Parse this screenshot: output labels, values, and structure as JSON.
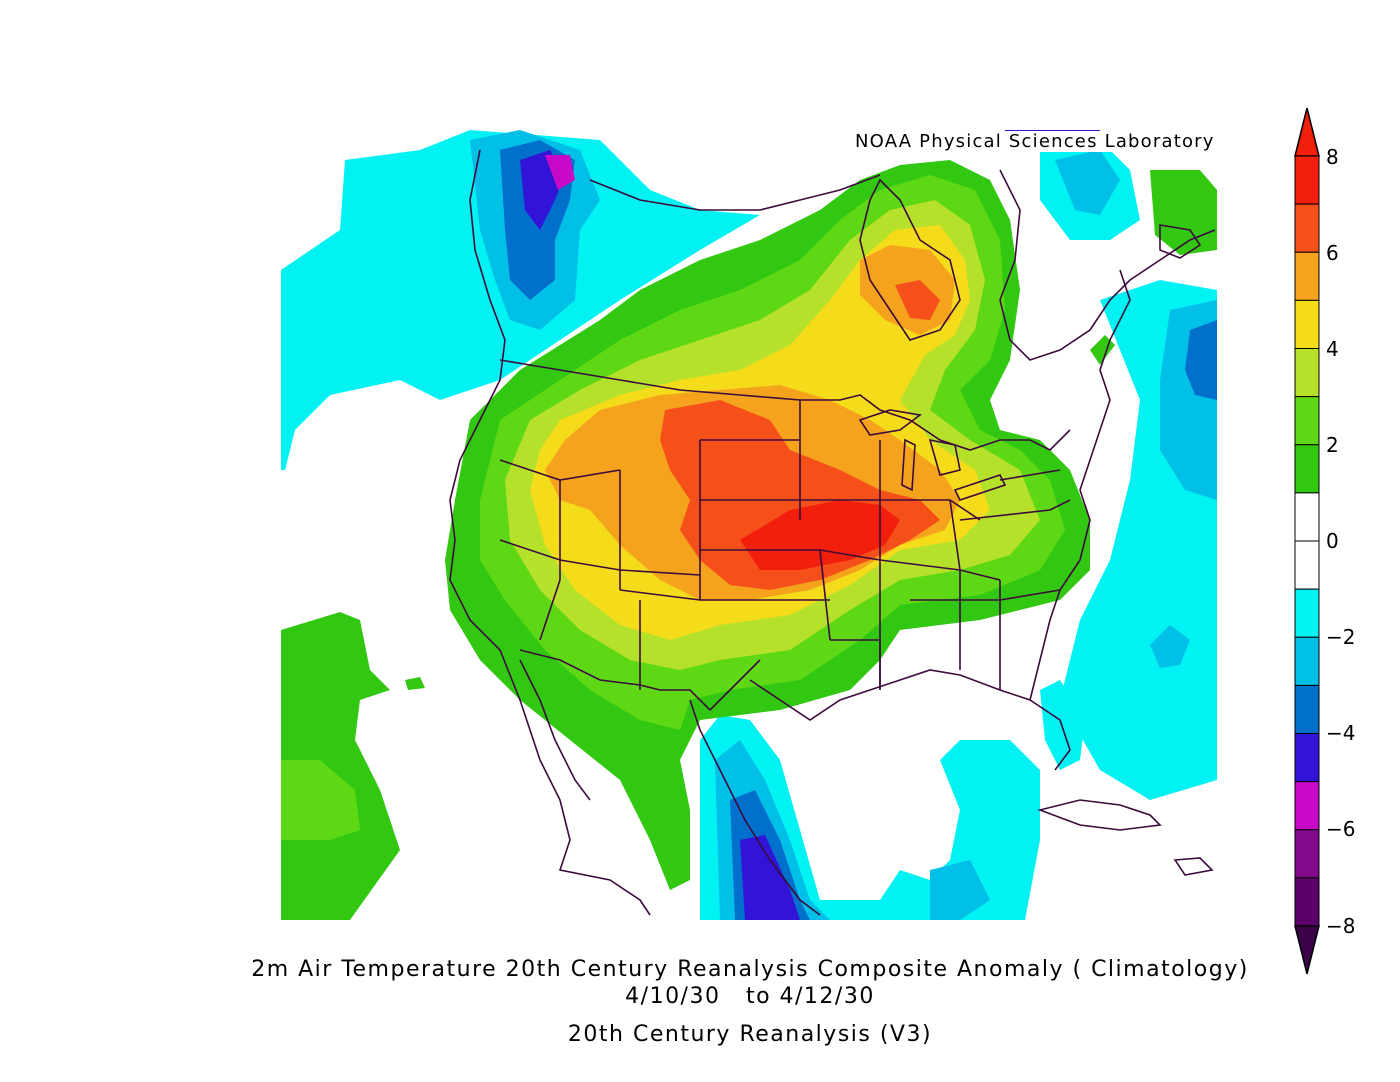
{
  "credit": "NOAA Physical Sciences Laboratory",
  "title": {
    "line1": "2m Air Temperature 20th Century Reanalysis Composite Anomaly ( Climatology)",
    "line2": "4/10/30   to 4/12/30",
    "line3": "20th Century Reanalysis (V3)"
  },
  "colorbar": {
    "labels": [
      "8",
      "6",
      "4",
      "2",
      "0",
      "−2",
      "−4",
      "−6",
      "−8"
    ],
    "levels": [
      {
        "range": "7 to 8+",
        "color": "#f21f0d"
      },
      {
        "range": "6 to 7",
        "color": "#f5501a"
      },
      {
        "range": "5 to 6",
        "color": "#f5a21c"
      },
      {
        "range": "4 to 5",
        "color": "#f5dc1a"
      },
      {
        "range": "3 to 4",
        "color": "#b6e12a"
      },
      {
        "range": "2 to 3",
        "color": "#5ed814"
      },
      {
        "range": "1 to 2",
        "color": "#32c812"
      },
      {
        "range": "0 to 1",
        "color": "#ffffff"
      },
      {
        "range": "-1 to 0",
        "color": "#ffffff"
      },
      {
        "range": "-2 to -1",
        "color": "#00f2f2"
      },
      {
        "range": "-3 to -2",
        "color": "#00c0e8"
      },
      {
        "range": "-4 to -3",
        "color": "#0070cc"
      },
      {
        "range": "-5 to -4",
        "color": "#3214d8"
      },
      {
        "range": "-6 to -5",
        "color": "#c80ac8"
      },
      {
        "range": "-7 to -6",
        "color": "#820a8a"
      },
      {
        "range": "-8 to -7",
        "color": "#5a0068"
      }
    ],
    "top_arrow_color": "#f21f0d",
    "bottom_arrow_color": "#3a0048"
  },
  "map_colors": {
    "background": "#ffffff",
    "boundary_line": "#3c0a3c"
  }
}
